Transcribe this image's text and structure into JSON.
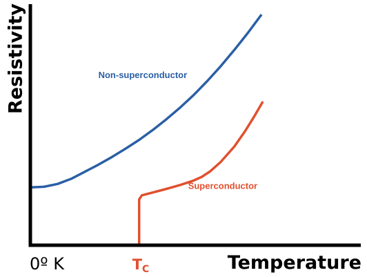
{
  "chart_data": {
    "type": "line",
    "xlabel": "Temperature",
    "ylabel": "Resistivity",
    "x_ticks": [
      {
        "main": "0º K",
        "sub": "",
        "x": 0
      },
      {
        "main": "T",
        "sub": "C",
        "x": 40
      }
    ],
    "xlim": [
      0,
      122
    ],
    "ylim": [
      0,
      100
    ],
    "grid": false,
    "legend": "none",
    "series": [
      {
        "name": "Non-superconductor",
        "color": "#2a5fa5",
        "x": [
          0,
          5,
          10,
          15,
          20,
          25,
          30,
          35,
          40,
          45,
          50,
          55,
          60,
          65,
          70,
          75,
          80,
          85
        ],
        "y": [
          27,
          27.3,
          28.6,
          31,
          34.3,
          37.6,
          41.2,
          45.1,
          49.2,
          53.8,
          58.8,
          64.2,
          70.1,
          76.6,
          83.6,
          91.2,
          99.2,
          107.7
        ]
      },
      {
        "name": "Superconductor",
        "color": "#e0502e",
        "x": [
          40,
          40,
          41,
          50,
          55,
          60,
          63,
          66,
          70,
          75,
          79,
          82,
          85.5
        ],
        "y": [
          0,
          21.4,
          23.3,
          26.3,
          28.1,
          30.2,
          31.9,
          34.4,
          38.9,
          46.1,
          53.4,
          59.5,
          67.1
        ]
      }
    ],
    "annotations": [
      {
        "series": "Non-superconductor",
        "text": "Non-superconductor",
        "x": 25,
        "y": 78
      },
      {
        "series": "Superconductor",
        "text": "Superconductor",
        "x": 58,
        "y": 26.3
      }
    ]
  },
  "colors": {
    "axis": "#000000",
    "tc_label": "#e0502e"
  }
}
